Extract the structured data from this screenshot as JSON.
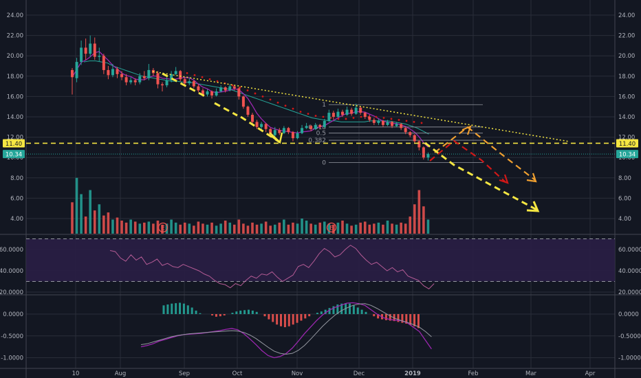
{
  "chart_data": {
    "type": "candlestick",
    "background": "#131722",
    "colors": {
      "up": "#26a69a",
      "down": "#ef5350",
      "grid": "#2a2e39",
      "text": "#b2b5be",
      "rsi_fill": "#2a1e45",
      "rsi_band": "#7e57c2",
      "price_line": "#f5e642",
      "last_price": "#26a69a",
      "fib": "#9598a1",
      "trend_yellow": "#f5e642",
      "trend_orange": "#f0a030",
      "trend_red": "#d01818",
      "sma": "#26a69a",
      "ema": "#9c27b0",
      "ema_dots": "#d01818"
    },
    "x_axis": {
      "ticks": [
        "10",
        "Aug",
        "Sep",
        "Oct",
        "Nov",
        "Dec",
        "2019",
        "Feb",
        "Mar",
        "Apr"
      ]
    },
    "price_panel": {
      "ylim": [
        9.5,
        24.5
      ],
      "ticks": [
        "24.00",
        "22.00",
        "20.00",
        "18.00",
        "16.00",
        "14.00",
        "12.00",
        "10.00",
        "8.00",
        "6.00",
        "4.00"
      ],
      "price_labels": [
        {
          "text": "11.40",
          "value": 11.4,
          "color": "#f5e642"
        },
        {
          "text": "10.34",
          "value": 10.34,
          "color": "#26a69a"
        }
      ],
      "fib_labels": [
        "1",
        "0.618",
        "0.5",
        "0.382",
        "0"
      ],
      "earnings_labels": [
        "E",
        "E"
      ]
    },
    "rsi_panel": {
      "ylim": [
        20,
        75
      ],
      "ticks": [
        "60.0000",
        "40.0000",
        "20.0000"
      ],
      "upper": 70,
      "lower": 30
    },
    "macd_panel": {
      "ylim": [
        -1.1,
        0.35
      ],
      "ticks": [
        "0.0000",
        "-0.5000",
        "-1.0000"
      ]
    },
    "candles": [
      [
        18.6,
        17.9,
        18.8,
        16.2
      ],
      [
        17.8,
        19.4,
        19.8,
        17.4
      ],
      [
        19.4,
        20.8,
        21.5,
        19.1
      ],
      [
        20.8,
        20.2,
        21.7,
        19.6
      ],
      [
        20.2,
        21.2,
        22.0,
        19.9
      ],
      [
        21.2,
        19.9,
        21.8,
        19.6
      ],
      [
        19.9,
        20.0,
        20.8,
        19.4
      ],
      [
        20.0,
        18.6,
        20.2,
        18.2
      ],
      [
        18.6,
        18.1,
        19.0,
        17.7
      ],
      [
        18.1,
        18.7,
        19.2,
        17.9
      ],
      [
        18.7,
        18.2,
        18.9,
        17.8
      ],
      [
        18.2,
        17.9,
        18.5,
        17.6
      ],
      [
        17.9,
        17.4,
        18.2,
        17.1
      ],
      [
        17.4,
        17.6,
        17.9,
        17.2
      ],
      [
        17.6,
        17.4,
        17.8,
        17.1
      ],
      [
        17.4,
        18.0,
        18.3,
        17.2
      ],
      [
        18.0,
        17.8,
        18.5,
        17.6
      ],
      [
        17.8,
        18.6,
        19.2,
        17.6
      ],
      [
        18.6,
        18.3,
        18.8,
        18.0
      ],
      [
        18.3,
        17.2,
        18.5,
        16.8
      ],
      [
        17.2,
        17.1,
        17.4,
        16.5
      ],
      [
        17.1,
        17.6,
        17.9,
        16.9
      ],
      [
        17.6,
        18.2,
        18.5,
        17.4
      ],
      [
        18.2,
        18.5,
        18.9,
        18.1
      ],
      [
        18.5,
        17.7,
        18.6,
        17.5
      ],
      [
        17.7,
        17.3,
        17.9,
        17.0
      ],
      [
        17.3,
        17.5,
        17.8,
        17.1
      ],
      [
        17.5,
        17.0,
        17.6,
        16.8
      ],
      [
        17.0,
        16.6,
        17.2,
        16.4
      ],
      [
        16.6,
        16.2,
        16.8,
        16.0
      ],
      [
        16.2,
        16.5,
        16.7,
        16.0
      ],
      [
        16.5,
        16.1,
        16.6,
        15.8
      ],
      [
        16.1,
        16.5,
        16.8,
        16.0
      ],
      [
        16.5,
        16.9,
        17.1,
        16.4
      ],
      [
        16.9,
        16.6,
        17.0,
        16.4
      ],
      [
        16.6,
        17.0,
        17.2,
        16.5
      ],
      [
        17.0,
        16.8,
        17.1,
        16.6
      ],
      [
        16.8,
        16.0,
        16.9,
        15.7
      ],
      [
        16.0,
        15.0,
        16.1,
        14.8
      ],
      [
        15.0,
        14.2,
        15.1,
        14.0
      ],
      [
        14.2,
        13.5,
        14.4,
        13.3
      ],
      [
        13.5,
        13.0,
        13.7,
        12.8
      ],
      [
        13.0,
        13.3,
        13.5,
        12.7
      ],
      [
        13.3,
        12.8,
        13.4,
        12.5
      ],
      [
        12.8,
        12.2,
        12.9,
        12.0
      ],
      [
        12.2,
        12.7,
        13.0,
        12.0
      ],
      [
        12.7,
        12.4,
        12.9,
        12.2
      ],
      [
        12.4,
        12.9,
        13.1,
        12.3
      ],
      [
        12.9,
        12.5,
        13.0,
        12.3
      ],
      [
        12.5,
        11.9,
        12.6,
        11.6
      ],
      [
        11.9,
        12.4,
        12.6,
        11.8
      ],
      [
        12.4,
        12.9,
        13.2,
        12.3
      ],
      [
        12.9,
        13.1,
        13.4,
        12.8
      ],
      [
        13.1,
        12.8,
        13.2,
        12.6
      ],
      [
        12.8,
        13.2,
        13.4,
        12.7
      ],
      [
        13.2,
        13.0,
        13.3,
        12.8
      ],
      [
        13.0,
        13.6,
        13.8,
        12.9
      ],
      [
        13.6,
        14.4,
        14.7,
        13.5
      ],
      [
        14.4,
        14.0,
        14.6,
        13.7
      ],
      [
        14.0,
        14.5,
        14.8,
        13.9
      ],
      [
        14.5,
        14.2,
        14.7,
        14.0
      ],
      [
        14.2,
        14.7,
        15.0,
        14.1
      ],
      [
        14.7,
        14.3,
        14.9,
        14.1
      ],
      [
        14.3,
        14.9,
        15.3,
        14.2
      ],
      [
        14.9,
        14.4,
        15.0,
        14.2
      ],
      [
        14.4,
        14.0,
        14.5,
        13.8
      ],
      [
        14.0,
        13.7,
        14.2,
        13.5
      ],
      [
        13.7,
        13.4,
        13.9,
        13.2
      ],
      [
        13.4,
        13.6,
        13.8,
        13.2
      ],
      [
        13.6,
        13.2,
        13.7,
        13.0
      ],
      [
        13.2,
        13.5,
        13.7,
        13.1
      ],
      [
        13.5,
        13.1,
        13.6,
        12.9
      ],
      [
        13.1,
        13.3,
        13.5,
        13.0
      ],
      [
        13.3,
        12.9,
        13.4,
        12.7
      ],
      [
        12.9,
        12.5,
        13.0,
        12.3
      ],
      [
        12.5,
        12.2,
        12.6,
        12.0
      ],
      [
        12.2,
        11.6,
        12.3,
        11.4
      ],
      [
        11.6,
        11.0,
        11.7,
        10.7
      ],
      [
        11.0,
        10.0,
        11.1,
        9.8
      ],
      [
        10.0,
        10.34,
        10.5,
        9.7
      ]
    ],
    "sma": [
      19.4,
      19.5,
      19.5,
      19.4,
      19.3,
      19.0,
      18.8,
      18.6,
      18.4,
      18.2,
      18.0,
      17.9,
      17.8,
      17.7,
      17.6,
      17.5,
      17.5,
      17.4,
      17.4,
      17.3,
      17.2,
      17.1,
      17.0,
      16.9,
      16.8,
      16.7,
      16.5,
      16.3,
      16.1,
      15.9,
      15.7,
      15.5,
      15.3,
      15.1,
      14.9,
      14.7,
      14.5,
      14.3,
      14.1,
      13.9,
      13.8,
      13.7,
      13.6,
      13.6,
      13.5,
      13.5,
      13.5,
      13.5,
      13.5,
      13.6,
      13.6,
      13.6,
      13.6,
      13.5,
      13.4,
      13.3,
      13.1,
      12.9,
      12.6,
      12.3
    ],
    "ema_dots": [
      18.3,
      18.1,
      17.9,
      17.7,
      17.5,
      17.3,
      17.1,
      16.9,
      16.6,
      16.3,
      16.0,
      15.7,
      15.4,
      15.1,
      14.8,
      14.5,
      14.3,
      14.1,
      14.0,
      13.9,
      13.8,
      13.8,
      13.9,
      14.0,
      14.0,
      14.0,
      13.9,
      13.8,
      13.7,
      13.6,
      13.5,
      13.4
    ],
    "fib_levels": {
      "1": 15.2,
      "0.618": 13.0,
      "0.5": 12.4,
      "0.382": 11.7,
      "0": 9.5
    },
    "volume": [
      5.6,
      8.0,
      6.4,
      4.2,
      6.8,
      4.8,
      5.4,
      4.3,
      4.6,
      3.9,
      4.1,
      3.8,
      3.6,
      3.9,
      3.7,
      3.5,
      3.6,
      3.7,
      3.5,
      3.8,
      3.4,
      3.5,
      3.9,
      3.6,
      3.4,
      3.6,
      3.5,
      3.3,
      3.7,
      3.5,
      3.4,
      3.6,
      3.3,
      3.5,
      3.8,
      3.6,
      3.4,
      3.9,
      3.5,
      3.3,
      3.6,
      3.4,
      3.5,
      3.7,
      3.3,
      3.4,
      3.6,
      3.9,
      3.4,
      3.6,
      3.5,
      4.0,
      3.8,
      3.5,
      3.4,
      3.6,
      3.7,
      3.5,
      3.4,
      3.6,
      3.8,
      3.5,
      3.3,
      3.4,
      3.6,
      3.7,
      3.4,
      3.5,
      3.6,
      3.4,
      3.8,
      3.5,
      3.4,
      3.6,
      3.5,
      4.2,
      5.4,
      6.8,
      5.2,
      3.9
    ],
    "rsi": [
      59,
      58,
      52,
      49,
      55,
      50,
      53,
      46,
      48,
      51,
      45,
      47,
      44,
      43,
      46,
      44,
      42,
      40,
      37,
      35,
      31,
      28,
      27,
      24,
      28,
      26,
      31,
      35,
      33,
      37,
      36,
      39,
      34,
      30,
      33,
      36,
      44,
      46,
      43,
      49,
      56,
      61,
      58,
      53,
      55,
      60,
      64,
      61,
      55,
      50,
      46,
      48,
      44,
      40,
      43,
      39,
      41,
      35,
      33,
      31,
      26,
      23,
      28
    ],
    "macd": [
      -0.75,
      -0.72,
      -0.68,
      -0.62,
      -0.58,
      -0.54,
      -0.5,
      -0.47,
      -0.46,
      -0.45,
      -0.44,
      -0.42,
      -0.4,
      -0.38,
      -0.35,
      -0.33,
      -0.36,
      -0.45,
      -0.57,
      -0.7,
      -0.84,
      -0.95,
      -1.0,
      -0.97,
      -0.9,
      -0.78,
      -0.62,
      -0.45,
      -0.3,
      -0.15,
      -0.02,
      0.08,
      0.15,
      0.2,
      0.25,
      0.26,
      0.24,
      0.2,
      0.1,
      0.0,
      -0.08,
      -0.12,
      -0.14,
      -0.15,
      -0.2,
      -0.3,
      -0.4,
      -0.6,
      -0.8
    ],
    "signal": [
      -0.7,
      -0.68,
      -0.64,
      -0.6,
      -0.56,
      -0.52,
      -0.49,
      -0.47,
      -0.45,
      -0.44,
      -0.43,
      -0.42,
      -0.41,
      -0.4,
      -0.39,
      -0.38,
      -0.39,
      -0.42,
      -0.48,
      -0.56,
      -0.66,
      -0.76,
      -0.85,
      -0.9,
      -0.92,
      -0.9,
      -0.83,
      -0.72,
      -0.58,
      -0.43,
      -0.28,
      -0.15,
      -0.03,
      0.07,
      0.14,
      0.2,
      0.23,
      0.24,
      0.2,
      0.13,
      0.05,
      -0.03,
      -0.1,
      -0.15,
      -0.19,
      -0.24,
      -0.3,
      -0.4,
      -0.52
    ],
    "histogram": [
      0.2,
      0.22,
      0.24,
      0.25,
      0.26,
      0.24,
      0.2,
      0.15,
      0.08,
      0.02,
      0.0,
      0.0,
      -0.03,
      -0.06,
      -0.05,
      -0.03,
      0.0,
      0.03,
      0.06,
      0.08,
      0.09,
      0.1,
      0.08,
      0.05,
      0.0,
      -0.05,
      -0.12,
      -0.18,
      -0.24,
      -0.28,
      -0.3,
      -0.28,
      -0.24,
      -0.2,
      -0.15,
      -0.1,
      -0.05,
      0.0,
      0.03,
      0.06,
      0.1,
      0.14,
      0.18,
      0.22,
      0.24,
      0.25,
      0.24,
      0.2,
      0.15,
      0.1,
      0.05,
      0.0,
      -0.05,
      -0.1,
      -0.12,
      -0.14,
      -0.15,
      -0.16,
      -0.18,
      -0.2,
      -0.22,
      -0.25,
      -0.28,
      -0.32
    ]
  }
}
